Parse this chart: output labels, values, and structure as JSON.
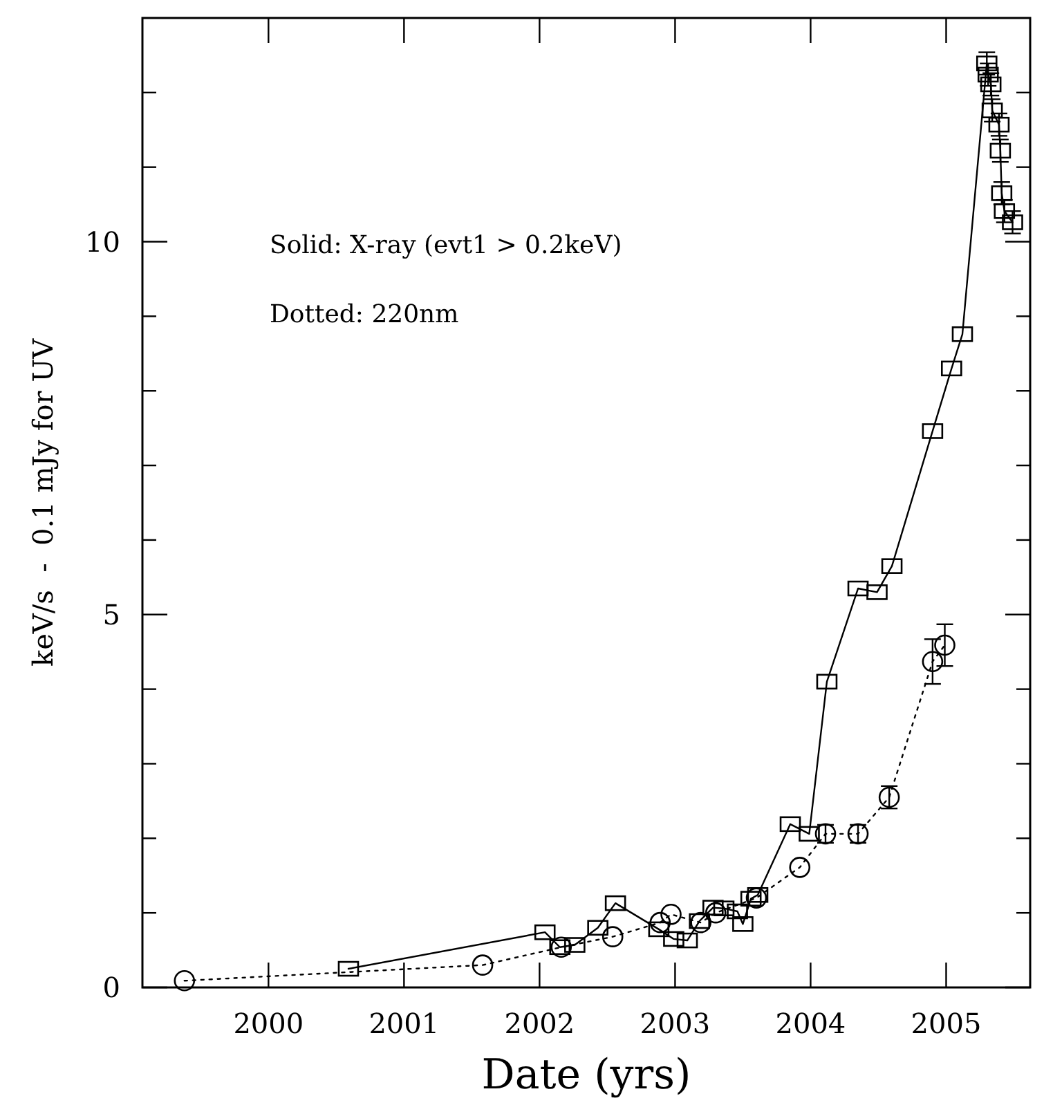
{
  "chart_data": {
    "type": "line",
    "xlabel": "Date (yrs)",
    "ylabel": "keV/s  -  0.1 mJy for UV",
    "xlim": [
      1999.07,
      2005.62
    ],
    "ylim": [
      0,
      13
    ],
    "xticks": [
      2000,
      2001,
      2002,
      2003,
      2004,
      2005
    ],
    "yticks": [
      0,
      {
        "value": 1,
        "label": null
      },
      {
        "value": 2,
        "label": null
      },
      {
        "value": 3,
        "label": null
      },
      {
        "value": 4,
        "label": null
      },
      5,
      {
        "value": 6,
        "label": null
      },
      {
        "value": 7,
        "label": null
      },
      {
        "value": 8,
        "label": null
      },
      {
        "value": 9,
        "label": null
      },
      10,
      {
        "value": 11,
        "label": null
      },
      {
        "value": 12,
        "label": null
      }
    ],
    "grid": false,
    "annotations": [
      "Solid: X-ray (evt1 > 0.2keV)",
      "Dotted: 220nm"
    ],
    "series": [
      {
        "color": "#000000",
        "marker": "square",
        "line_style": "solid",
        "x": [
          2000.59,
          2002.04,
          2002.15,
          2002.26,
          2002.43,
          2002.56,
          2002.88,
          2002.99,
          2003.09,
          2003.18,
          2003.28,
          2003.36,
          2003.46,
          2003.5,
          2003.56,
          2003.61,
          2003.85,
          2003.99,
          2004.12,
          2004.35,
          2004.49,
          2004.6,
          2004.9,
          2005.04,
          2005.12,
          2005.3,
          2005.31,
          2005.33,
          2005.34,
          2005.39,
          2005.4,
          2005.41,
          2005.43,
          2005.49
        ],
        "values": [
          0.25,
          0.74,
          0.54,
          0.57,
          0.8,
          1.13,
          0.78,
          0.65,
          0.63,
          0.89,
          1.07,
          1.06,
          1.02,
          0.85,
          1.19,
          1.24,
          2.19,
          2.06,
          4.1,
          5.35,
          5.3,
          5.65,
          7.46,
          8.3,
          8.76,
          12.39,
          12.24,
          12.11,
          11.76,
          11.57,
          11.22,
          10.65,
          10.41,
          10.26
        ],
        "errors": [
          null,
          null,
          null,
          null,
          null,
          null,
          null,
          null,
          null,
          null,
          null,
          null,
          null,
          null,
          null,
          null,
          null,
          null,
          null,
          null,
          null,
          null,
          null,
          null,
          null,
          0.15,
          0.15,
          0.15,
          0.15,
          0.15,
          0.15,
          0.15,
          0.15,
          0.15
        ]
      },
      {
        "color": "#000000",
        "marker": "circle",
        "line_style": "dotted",
        "x": [
          1999.38,
          2001.58,
          2002.16,
          2002.54,
          2002.89,
          2002.97,
          2003.19,
          2003.3,
          2003.6,
          2003.92,
          2004.11,
          2004.35,
          2004.58,
          2004.9,
          2004.99
        ],
        "values": [
          0.09,
          0.3,
          0.54,
          0.68,
          0.87,
          0.98,
          0.87,
          1.0,
          1.2,
          1.61,
          2.06,
          2.06,
          2.55,
          4.37,
          4.59
        ],
        "errors": [
          null,
          null,
          null,
          null,
          null,
          null,
          null,
          null,
          null,
          null,
          0.12,
          0.12,
          0.15,
          0.3,
          0.28
        ]
      }
    ]
  }
}
